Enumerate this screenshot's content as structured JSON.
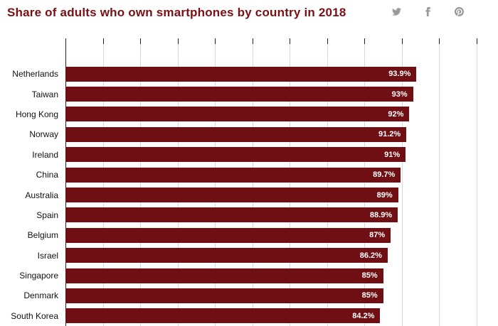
{
  "header": {
    "title": "Share of adults who own smartphones by country in 2018",
    "icons": [
      {
        "name": "twitter-icon"
      },
      {
        "name": "facebook-icon"
      },
      {
        "name": "pinterest-icon"
      }
    ]
  },
  "colors": {
    "title_text": "#7a1014",
    "bar": "#700f13",
    "grid": "#d9d9d9",
    "axis": "#222222",
    "value_text": "#ffffff",
    "label_text": "#111111",
    "icon": "#9a9a9a"
  },
  "chart_data": {
    "type": "bar",
    "orientation": "horizontal",
    "title": "Share of adults who own smartphones by country in 2018",
    "categories": [
      "Netherlands",
      "Taiwan",
      "Hong Kong",
      "Norway",
      "Ireland",
      "China",
      "Australia",
      "Spain",
      "Belgium",
      "Israel",
      "Singapore",
      "Denmark",
      "South Korea"
    ],
    "values": [
      93.9,
      93,
      92,
      91.2,
      91,
      89.7,
      89,
      88.9,
      87,
      86.2,
      85,
      85,
      84.2
    ],
    "value_labels": [
      "93.9%",
      "93%",
      "92%",
      "91.2%",
      "91%",
      "89.7%",
      "89%",
      "88.9%",
      "87%",
      "86.2%",
      "85%",
      "85%",
      "84.2%"
    ],
    "xlabel": "",
    "ylabel": "",
    "xlim": [
      0,
      110
    ],
    "grid_step": 10,
    "grid": true,
    "legend": false,
    "bar_color": "#700f13"
  }
}
